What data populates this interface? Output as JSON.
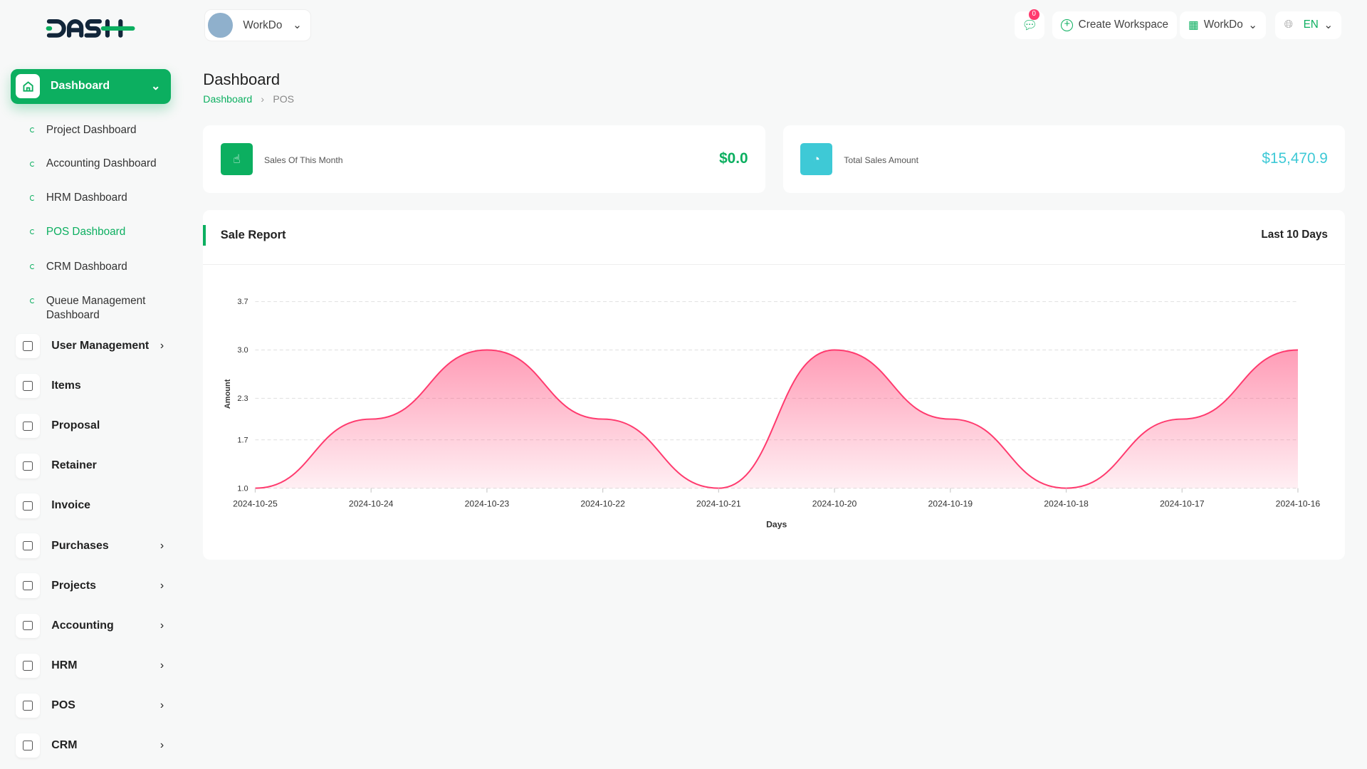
{
  "brand": {
    "logo": "DASH",
    "accent": "#0caf60"
  },
  "header": {
    "workspace": "WorkDo",
    "notifications_count": "0",
    "create_workspace": "Create Workspace",
    "app_switch": "WorkDo",
    "language": "EN"
  },
  "page": {
    "title": "Dashboard",
    "breadcrumb": [
      "Dashboard",
      "POS"
    ]
  },
  "sidebar": {
    "active": "Dashboard",
    "sub_items": [
      "Project Dashboard",
      "Accounting Dashboard",
      "HRM Dashboard",
      "POS Dashboard",
      "CRM Dashboard",
      "Queue Management Dashboard"
    ],
    "items": [
      {
        "label": "User Management",
        "icon": "users-icon",
        "chev": true
      },
      {
        "label": "Items",
        "icon": "cart-icon",
        "chev": false
      },
      {
        "label": "Proposal",
        "icon": "proposal-icon",
        "chev": false
      },
      {
        "label": "Retainer",
        "icon": "retainer-icon",
        "chev": false
      },
      {
        "label": "Invoice",
        "icon": "invoice-icon",
        "chev": false
      },
      {
        "label": "Purchases",
        "icon": "cart-icon",
        "chev": true
      },
      {
        "label": "Projects",
        "icon": "check-square-icon",
        "chev": true
      },
      {
        "label": "Accounting",
        "icon": "grid-plus-icon",
        "chev": true
      },
      {
        "label": "HRM",
        "icon": "hrm-icon",
        "chev": true
      },
      {
        "label": "POS",
        "icon": "dots-grid-icon",
        "chev": true
      },
      {
        "label": "CRM",
        "icon": "layers-icon",
        "chev": true
      }
    ]
  },
  "stats": [
    {
      "label": "Sales Of This Month",
      "value": "$0.0",
      "color": "#0caf60"
    },
    {
      "label": "Total Sales Amount",
      "value": "$15,470.9",
      "color": "#3ec9d6"
    }
  ],
  "report": {
    "title": "Sale Report",
    "range": "Last 10 Days"
  },
  "chart_data": {
    "type": "area",
    "xlabel": "Days",
    "ylabel": "Amount",
    "x": [
      "2024-10-25",
      "2024-10-24",
      "2024-10-23",
      "2024-10-22",
      "2024-10-21",
      "2024-10-20",
      "2024-10-19",
      "2024-10-18",
      "2024-10-17",
      "2024-10-16"
    ],
    "values": [
      1,
      2,
      3,
      2,
      1,
      3,
      2,
      1,
      2,
      3
    ],
    "yticks": [
      "1.0",
      "1.7",
      "2.3",
      "3.0",
      "3.7"
    ],
    "ylim": [
      1,
      3.7
    ],
    "grid": true,
    "color": "#ff3a6e"
  }
}
